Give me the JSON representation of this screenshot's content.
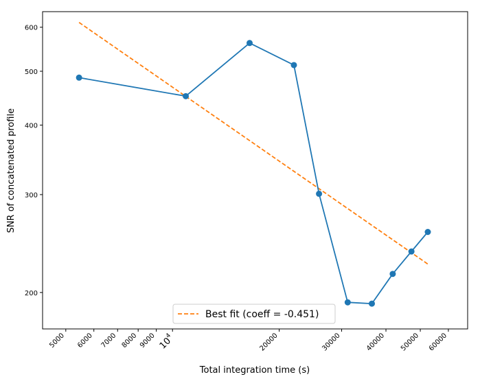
{
  "chart_data": {
    "type": "line",
    "xscale": "log",
    "yscale": "log",
    "xlabel": "Total integration time (s)",
    "ylabel": "SNR of concatenated profile",
    "xlim": [
      4300,
      68000
    ],
    "ylim": [
      172,
      640
    ],
    "grid": false,
    "legend_position": "bottom-center",
    "x_ticks": [
      {
        "value": 5000,
        "label": "5000"
      },
      {
        "value": 6000,
        "label": "6000"
      },
      {
        "value": 7000,
        "label": "7000"
      },
      {
        "value": 8000,
        "label": "8000"
      },
      {
        "value": 9000,
        "label": "9000"
      },
      {
        "value": 10000,
        "label": "10",
        "exponent": "4"
      },
      {
        "value": 20000,
        "label": "20000"
      },
      {
        "value": 30000,
        "label": "30000"
      },
      {
        "value": 40000,
        "label": "40000"
      },
      {
        "value": 50000,
        "label": "50000"
      },
      {
        "value": 60000,
        "label": "60000"
      }
    ],
    "y_ticks": [
      {
        "value": 200,
        "label": "200"
      },
      {
        "value": 300,
        "label": "300"
      },
      {
        "value": 400,
        "label": "400"
      },
      {
        "value": 500,
        "label": "500"
      },
      {
        "value": 600,
        "label": "600"
      }
    ],
    "series": [
      {
        "style": "line-markers",
        "color": "#1f77b4",
        "x": [
          5450,
          10900,
          16500,
          22000,
          25900,
          31200,
          36500,
          41800,
          47200,
          52500
        ],
        "y": [
          487,
          451,
          562,
          513,
          301,
          192,
          191,
          216,
          237,
          257
        ]
      },
      {
        "name": "Best fit (coeff = -0.451)",
        "style": "dashed",
        "color": "#ff7f0e",
        "x": [
          5450,
          52500
        ],
        "y": [
          612,
          225
        ]
      }
    ]
  }
}
